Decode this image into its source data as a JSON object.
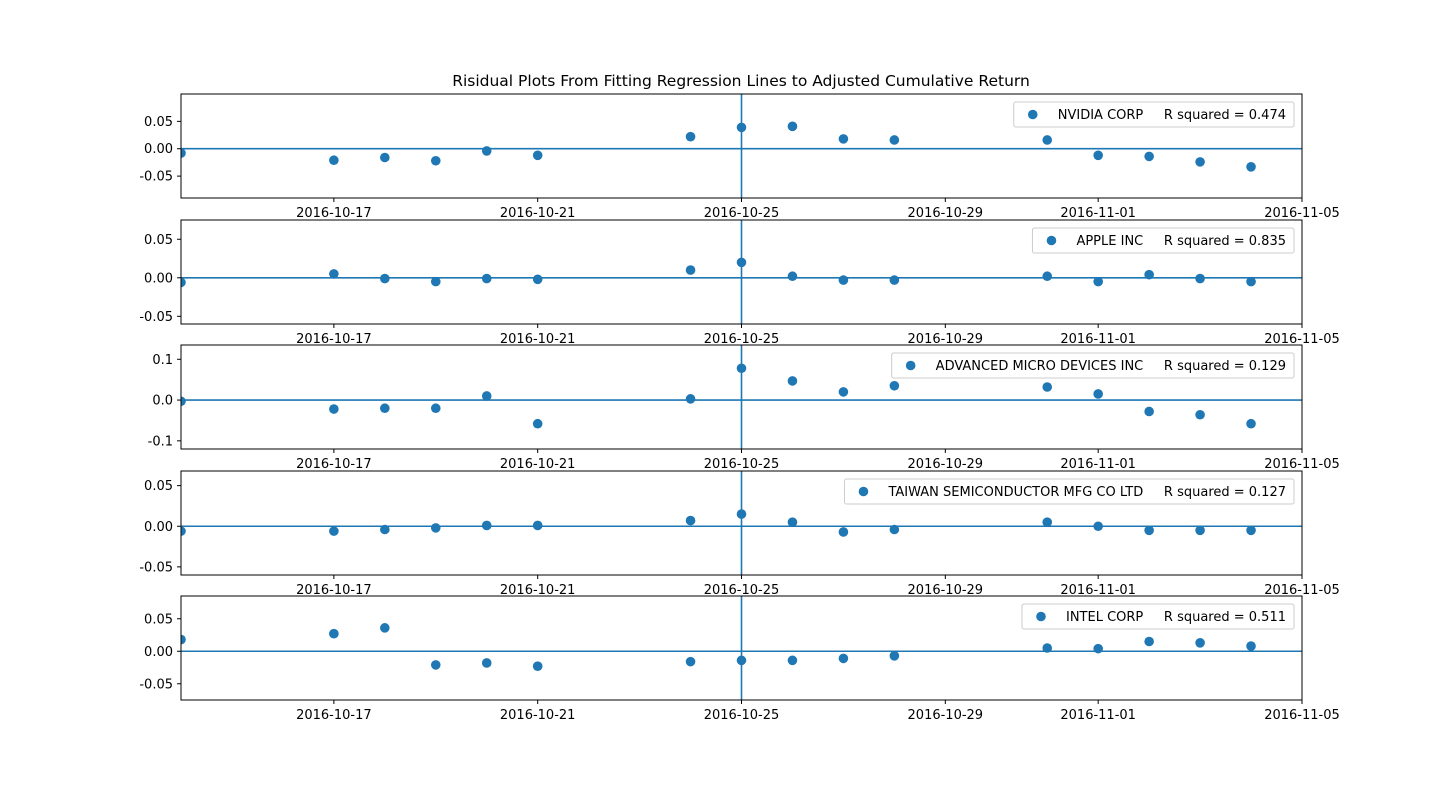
{
  "figure": {
    "title": "Risidual Plots From Fitting Regression Lines to Adjusted Cumulative Return",
    "marker_color": "#1f77b4",
    "line_color": "#1f77b4"
  },
  "chart_data": [
    {
      "type": "scatter",
      "legend": "NVIDIA CORP     R squared = 0.474",
      "legend_position": "upper right",
      "xlim": [
        "2016-10-14",
        "2016-11-05"
      ],
      "xticks": [
        "2016-10-17",
        "2016-10-21",
        "2016-10-25",
        "2016-10-29",
        "2016-11-01",
        "2016-11-05"
      ],
      "ylim": [
        -0.09,
        0.1
      ],
      "yticks": [
        "0.05",
        "0.00",
        "-0.05"
      ],
      "hline": 0,
      "vline": "2016-10-25",
      "x": [
        "2016-10-14",
        "2016-10-17",
        "2016-10-18",
        "2016-10-19",
        "2016-10-20",
        "2016-10-21",
        "2016-10-24",
        "2016-10-25",
        "2016-10-26",
        "2016-10-27",
        "2016-10-28",
        "2016-10-31",
        "2016-11-01",
        "2016-11-02",
        "2016-11-03",
        "2016-11-04"
      ],
      "y": [
        -0.008,
        -0.021,
        -0.016,
        -0.022,
        -0.004,
        -0.012,
        0.022,
        0.039,
        0.041,
        0.018,
        0.016,
        0.016,
        -0.012,
        -0.014,
        -0.024,
        -0.033
      ]
    },
    {
      "type": "scatter",
      "legend": "APPLE INC     R squared = 0.835",
      "legend_position": "upper right",
      "xlim": [
        "2016-10-14",
        "2016-11-05"
      ],
      "xticks": [
        "2016-10-17",
        "2016-10-21",
        "2016-10-25",
        "2016-10-29",
        "2016-11-01",
        "2016-11-05"
      ],
      "ylim": [
        -0.06,
        0.075
      ],
      "yticks": [
        "0.05",
        "0.00",
        "-0.05"
      ],
      "hline": 0,
      "vline": "2016-10-25",
      "x": [
        "2016-10-14",
        "2016-10-17",
        "2016-10-18",
        "2016-10-19",
        "2016-10-20",
        "2016-10-21",
        "2016-10-24",
        "2016-10-25",
        "2016-10-26",
        "2016-10-27",
        "2016-10-28",
        "2016-10-31",
        "2016-11-01",
        "2016-11-02",
        "2016-11-03",
        "2016-11-04"
      ],
      "y": [
        -0.006,
        0.005,
        -0.001,
        -0.005,
        -0.001,
        -0.002,
        0.01,
        0.02,
        0.002,
        -0.003,
        -0.003,
        0.002,
        -0.005,
        0.004,
        -0.001,
        -0.005
      ]
    },
    {
      "type": "scatter",
      "legend": "ADVANCED MICRO DEVICES INC     R squared = 0.129",
      "legend_position": "upper right",
      "xlim": [
        "2016-10-14",
        "2016-11-05"
      ],
      "xticks": [
        "2016-10-17",
        "2016-10-21",
        "2016-10-25",
        "2016-10-29",
        "2016-11-01",
        "2016-11-05"
      ],
      "ylim": [
        -0.12,
        0.135
      ],
      "yticks": [
        "0.1",
        "0.0",
        "-0.1"
      ],
      "hline": 0,
      "vline": "2016-10-25",
      "x": [
        "2016-10-14",
        "2016-10-17",
        "2016-10-18",
        "2016-10-19",
        "2016-10-20",
        "2016-10-21",
        "2016-10-24",
        "2016-10-25",
        "2016-10-26",
        "2016-10-27",
        "2016-10-28",
        "2016-10-31",
        "2016-11-01",
        "2016-11-02",
        "2016-11-03",
        "2016-11-04"
      ],
      "y": [
        -0.003,
        -0.022,
        -0.02,
        -0.02,
        0.01,
        -0.058,
        0.003,
        0.078,
        0.047,
        0.02,
        0.035,
        0.032,
        0.015,
        -0.028,
        -0.036,
        -0.058
      ]
    },
    {
      "type": "scatter",
      "legend": "TAIWAN SEMICONDUCTOR MFG CO LTD     R squared = 0.127",
      "legend_position": "upper right",
      "xlim": [
        "2016-10-14",
        "2016-11-05"
      ],
      "xticks": [
        "2016-10-17",
        "2016-10-21",
        "2016-10-25",
        "2016-10-29",
        "2016-11-01",
        "2016-11-05"
      ],
      "ylim": [
        -0.06,
        0.068
      ],
      "yticks": [
        "0.05",
        "0.00",
        "-0.05"
      ],
      "hline": 0,
      "vline": "2016-10-25",
      "x": [
        "2016-10-14",
        "2016-10-17",
        "2016-10-18",
        "2016-10-19",
        "2016-10-20",
        "2016-10-21",
        "2016-10-24",
        "2016-10-25",
        "2016-10-26",
        "2016-10-27",
        "2016-10-28",
        "2016-10-31",
        "2016-11-01",
        "2016-11-02",
        "2016-11-03",
        "2016-11-04"
      ],
      "y": [
        -0.006,
        -0.006,
        -0.004,
        -0.002,
        0.001,
        0.001,
        0.007,
        0.015,
        0.005,
        -0.007,
        -0.004,
        0.005,
        0.0,
        -0.005,
        -0.005,
        -0.005
      ]
    },
    {
      "type": "scatter",
      "legend": "INTEL CORP     R squared = 0.511",
      "legend_position": "upper right",
      "xlim": [
        "2016-10-14",
        "2016-11-05"
      ],
      "xticks": [
        "2016-10-17",
        "2016-10-21",
        "2016-10-25",
        "2016-10-29",
        "2016-11-01",
        "2016-11-05"
      ],
      "ylim": [
        -0.075,
        0.085
      ],
      "yticks": [
        "0.05",
        "0.00",
        "-0.05"
      ],
      "hline": 0,
      "vline": "2016-10-25",
      "x": [
        "2016-10-14",
        "2016-10-17",
        "2016-10-18",
        "2016-10-19",
        "2016-10-20",
        "2016-10-21",
        "2016-10-24",
        "2016-10-25",
        "2016-10-26",
        "2016-10-27",
        "2016-10-28",
        "2016-10-31",
        "2016-11-01",
        "2016-11-02",
        "2016-11-03",
        "2016-11-04"
      ],
      "y": [
        0.018,
        0.027,
        0.036,
        -0.021,
        -0.018,
        -0.023,
        -0.016,
        -0.014,
        -0.014,
        -0.011,
        -0.007,
        0.005,
        0.004,
        0.015,
        0.013,
        0.008
      ]
    }
  ]
}
